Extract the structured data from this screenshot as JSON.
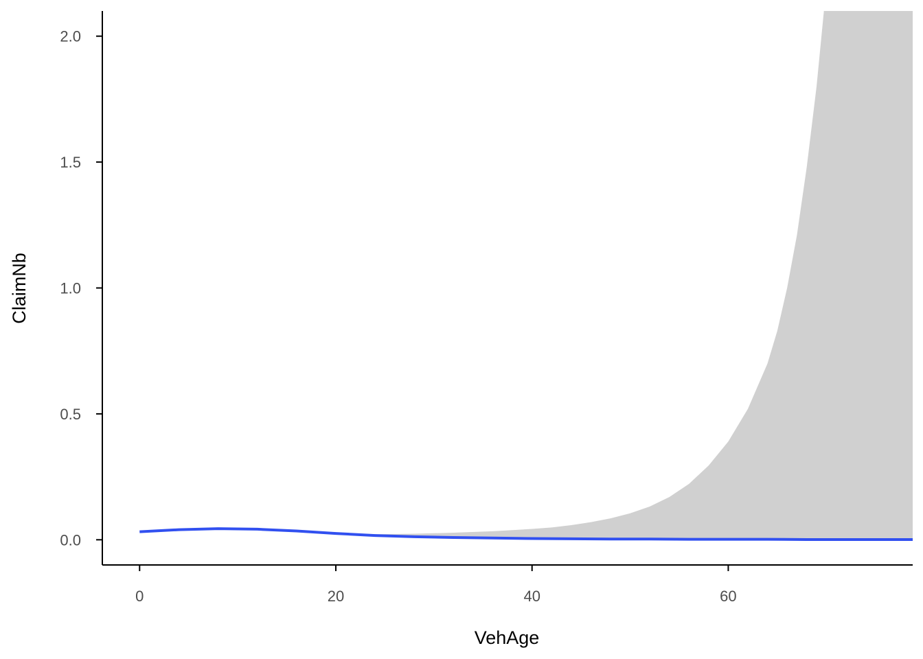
{
  "chart_data": {
    "type": "line",
    "xlabel": "VehAge",
    "ylabel": "ClaimNb",
    "xlim": [
      -3.8,
      78.8
    ],
    "ylim": [
      -0.1,
      2.1
    ],
    "x_ticks": [
      0,
      20,
      40,
      60
    ],
    "x_tick_labels": [
      "0",
      "20",
      "40",
      "60"
    ],
    "y_ticks": [
      0.0,
      0.5,
      1.0,
      1.5,
      2.0
    ],
    "y_tick_labels": [
      "0.0",
      "0.5",
      "1.0",
      "1.5",
      "2.0"
    ],
    "grid": false,
    "legend": "none",
    "colors": {
      "line": "#3150f0",
      "ribbon": "#d0d0d0",
      "axis": "#000000",
      "tick_label": "#4d4d4d"
    },
    "series": [
      {
        "x": [
          0,
          4,
          8,
          12,
          16,
          20,
          24,
          28,
          32,
          36,
          40,
          44,
          48,
          52,
          56,
          60,
          64,
          68,
          72,
          76,
          78.8
        ],
        "values": [
          0.032,
          0.04,
          0.044,
          0.042,
          0.035,
          0.025,
          0.017,
          0.012,
          0.009,
          0.007,
          0.005,
          0.004,
          0.003,
          0.003,
          0.002,
          0.002,
          0.002,
          0.001,
          0.001,
          0.001,
          0.001
        ]
      }
    ],
    "ribbon": {
      "x": [
        0,
        4,
        8,
        12,
        16,
        20,
        24,
        28,
        32,
        36,
        40,
        42,
        44,
        46,
        48,
        50,
        52,
        54,
        56,
        58,
        60,
        62,
        64,
        65,
        66,
        67,
        68,
        69,
        70,
        71,
        72,
        74,
        76,
        78.8
      ],
      "lower": [
        0.028,
        0.036,
        0.04,
        0.038,
        0.031,
        0.022,
        0.015,
        0.01,
        0.007,
        0.005,
        0.003,
        0.003,
        0.002,
        0.002,
        0.002,
        0.001,
        0.001,
        0.001,
        0.001,
        0.001,
        0.0,
        0.0,
        0.0,
        0.0,
        0.0,
        0.0,
        0.0,
        0.0,
        0.0,
        0.0,
        0.0,
        0.0,
        0.0,
        0.0
      ],
      "upper": [
        0.036,
        0.044,
        0.048,
        0.046,
        0.039,
        0.029,
        0.022,
        0.024,
        0.028,
        0.034,
        0.043,
        0.049,
        0.058,
        0.07,
        0.085,
        0.105,
        0.132,
        0.17,
        0.222,
        0.295,
        0.39,
        0.52,
        0.7,
        0.83,
        1.0,
        1.21,
        1.48,
        1.8,
        2.2,
        2.7,
        3.3,
        4.8,
        7.0,
        12.0
      ]
    }
  }
}
